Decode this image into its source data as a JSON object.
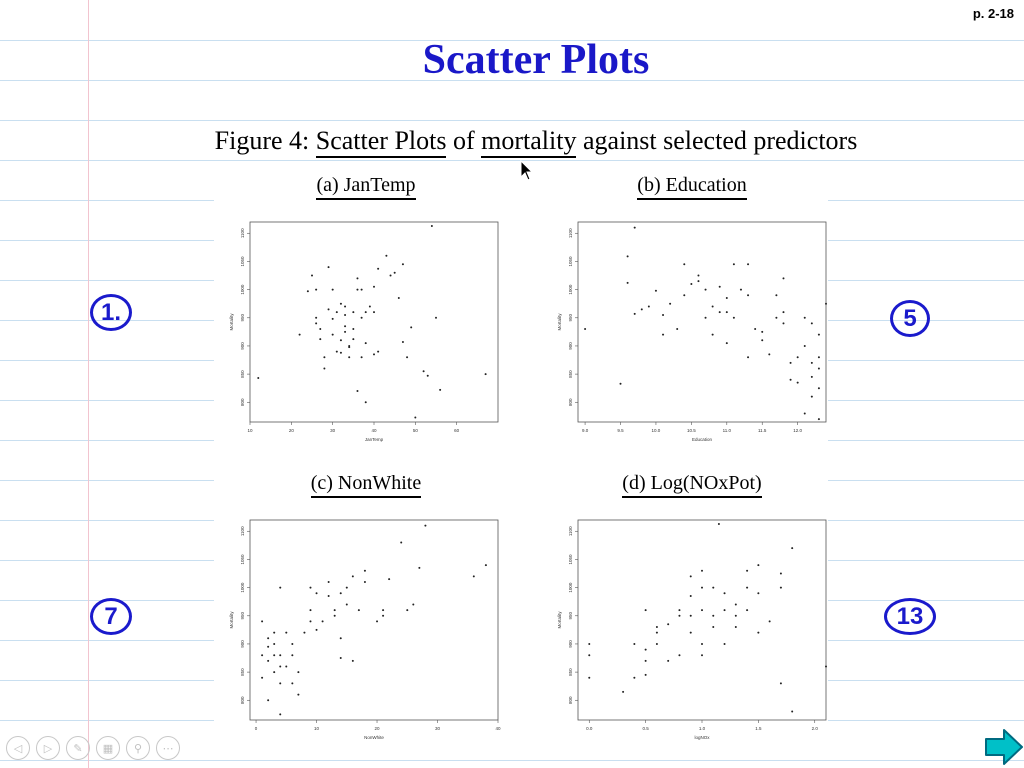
{
  "page": {
    "page_number": "p. 2-18",
    "title": "Scatter Plots",
    "caption": {
      "prefix": "Figure 4: ",
      "part1": "Scatter Plots",
      "mid": " of ",
      "part2": "mortality",
      "suffix": " against selected predictors"
    }
  },
  "annotations": [
    "1.",
    "5",
    "7",
    "13"
  ],
  "toolbar": {
    "icons": [
      "back-icon",
      "forward-icon",
      "pen-icon",
      "pages-icon",
      "zoom-icon",
      "more-icon"
    ],
    "next": "next-slide-arrow-icon"
  },
  "colors": {
    "title": "#1a18c8",
    "annotation": "#1a1acc",
    "arrow": "#00c0c8"
  },
  "chart_data": [
    {
      "type": "scatter",
      "title": "(a) JanTemp",
      "xlabel": "JanTemp",
      "ylabel": "Mortality",
      "xlim": [
        10,
        70
      ],
      "ylim": [
        765,
        1120
      ],
      "xticks": [
        10,
        20,
        30,
        40,
        50,
        60
      ],
      "yticks": [
        800,
        850,
        900,
        950,
        1000,
        1050,
        1100
      ],
      "points": [
        [
          12,
          843
        ],
        [
          22,
          920
        ],
        [
          24,
          997
        ],
        [
          25,
          1025
        ],
        [
          26,
          1000
        ],
        [
          26,
          940
        ],
        [
          26,
          950
        ],
        [
          27,
          930
        ],
        [
          27,
          912
        ],
        [
          28,
          860
        ],
        [
          28,
          880
        ],
        [
          29,
          965
        ],
        [
          29,
          1040
        ],
        [
          30,
          1000
        ],
        [
          30,
          920
        ],
        [
          30,
          948
        ],
        [
          31,
          890
        ],
        [
          31,
          960
        ],
        [
          32,
          975
        ],
        [
          32,
          910
        ],
        [
          32,
          888
        ],
        [
          33,
          970
        ],
        [
          33,
          925
        ],
        [
          33,
          935
        ],
        [
          33,
          955
        ],
        [
          34,
          898
        ],
        [
          34,
          900
        ],
        [
          34,
          880
        ],
        [
          35,
          960
        ],
        [
          35,
          912
        ],
        [
          35,
          930
        ],
        [
          36,
          1000
        ],
        [
          36,
          1020
        ],
        [
          36,
          820
        ],
        [
          37,
          880
        ],
        [
          37,
          950
        ],
        [
          37,
          1000
        ],
        [
          38,
          960
        ],
        [
          38,
          800
        ],
        [
          38,
          905
        ],
        [
          39,
          970
        ],
        [
          40,
          960
        ],
        [
          40,
          885
        ],
        [
          40,
          1005
        ],
        [
          41,
          1037
        ],
        [
          41,
          890
        ],
        [
          43,
          1060
        ],
        [
          44,
          1025
        ],
        [
          45,
          1030
        ],
        [
          46,
          985
        ],
        [
          47,
          1045
        ],
        [
          47,
          907
        ],
        [
          48,
          880
        ],
        [
          49,
          933
        ],
        [
          50,
          773
        ],
        [
          52,
          855
        ],
        [
          53,
          847
        ],
        [
          54,
          1113
        ],
        [
          55,
          950
        ],
        [
          56,
          822
        ],
        [
          67,
          850
        ]
      ]
    },
    {
      "type": "scatter",
      "title": "(b) Education",
      "xlabel": "Education",
      "ylabel": "Mortality",
      "xlim": [
        8.9,
        12.4
      ],
      "ylim": [
        765,
        1120
      ],
      "xticks": [
        9.0,
        9.5,
        10.0,
        10.5,
        11.0,
        11.5,
        12.0
      ],
      "yticks": [
        800,
        850,
        900,
        950,
        1000,
        1050,
        1100
      ],
      "points": [
        [
          9.0,
          930
        ],
        [
          9.5,
          833
        ],
        [
          9.6,
          1012
        ],
        [
          9.6,
          1059
        ],
        [
          9.7,
          957
        ],
        [
          9.7,
          1110
        ],
        [
          9.8,
          965
        ],
        [
          9.9,
          970
        ],
        [
          10.0,
          998
        ],
        [
          10.1,
          920
        ],
        [
          10.1,
          955
        ],
        [
          10.2,
          975
        ],
        [
          10.3,
          930
        ],
        [
          10.4,
          1045
        ],
        [
          10.4,
          990
        ],
        [
          10.5,
          1010
        ],
        [
          10.6,
          1025
        ],
        [
          10.6,
          1015
        ],
        [
          10.7,
          1000
        ],
        [
          10.7,
          950
        ],
        [
          10.8,
          970
        ],
        [
          10.8,
          920
        ],
        [
          10.9,
          960
        ],
        [
          10.9,
          1005
        ],
        [
          11.0,
          985
        ],
        [
          11.0,
          960
        ],
        [
          11.0,
          905
        ],
        [
          11.1,
          1045
        ],
        [
          11.1,
          950
        ],
        [
          11.2,
          1000
        ],
        [
          11.3,
          880
        ],
        [
          11.3,
          1045
        ],
        [
          11.3,
          990
        ],
        [
          11.4,
          930
        ],
        [
          11.5,
          910
        ],
        [
          11.5,
          925
        ],
        [
          11.6,
          885
        ],
        [
          11.7,
          950
        ],
        [
          11.7,
          990
        ],
        [
          11.8,
          940
        ],
        [
          11.8,
          960
        ],
        [
          11.8,
          1020
        ],
        [
          11.9,
          840
        ],
        [
          11.9,
          870
        ],
        [
          12.0,
          880
        ],
        [
          12.0,
          835
        ],
        [
          12.1,
          900
        ],
        [
          12.1,
          950
        ],
        [
          12.1,
          780
        ],
        [
          12.2,
          870
        ],
        [
          12.2,
          810
        ],
        [
          12.2,
          940
        ],
        [
          12.3,
          825
        ],
        [
          12.3,
          860
        ],
        [
          12.3,
          920
        ],
        [
          12.4,
          975
        ],
        [
          12.3,
          770
        ],
        [
          12.2,
          845
        ],
        [
          12.3,
          880
        ]
      ]
    },
    {
      "type": "scatter",
      "title": "(c) NonWhite",
      "xlabel": "NonWhite",
      "ylabel": "Mortality",
      "xlim": [
        -1,
        40
      ],
      "ylim": [
        765,
        1120
      ],
      "xticks": [
        0,
        10,
        20,
        30,
        40
      ],
      "yticks": [
        800,
        850,
        900,
        950,
        1000,
        1050,
        1100
      ],
      "points": [
        [
          1,
          840
        ],
        [
          1,
          880
        ],
        [
          1,
          940
        ],
        [
          2,
          800
        ],
        [
          2,
          910
        ],
        [
          2,
          895
        ],
        [
          2,
          870
        ],
        [
          3,
          850
        ],
        [
          3,
          880
        ],
        [
          3,
          900
        ],
        [
          3,
          920
        ],
        [
          4,
          830
        ],
        [
          4,
          860
        ],
        [
          4,
          880
        ],
        [
          4,
          1000
        ],
        [
          4,
          775
        ],
        [
          5,
          860
        ],
        [
          5,
          920
        ],
        [
          6,
          880
        ],
        [
          6,
          830
        ],
        [
          6,
          900
        ],
        [
          7,
          850
        ],
        [
          7,
          810
        ],
        [
          8,
          920
        ],
        [
          9,
          960
        ],
        [
          9,
          940
        ],
        [
          9,
          1000
        ],
        [
          10,
          990
        ],
        [
          10,
          925
        ],
        [
          11,
          940
        ],
        [
          12,
          1010
        ],
        [
          12,
          985
        ],
        [
          13,
          960
        ],
        [
          13,
          950
        ],
        [
          14,
          990
        ],
        [
          14,
          910
        ],
        [
          14,
          875
        ],
        [
          15,
          1000
        ],
        [
          15,
          970
        ],
        [
          16,
          1020
        ],
        [
          16,
          870
        ],
        [
          17,
          960
        ],
        [
          18,
          1030
        ],
        [
          18,
          1010
        ],
        [
          20,
          940
        ],
        [
          21,
          960
        ],
        [
          21,
          950
        ],
        [
          22,
          1015
        ],
        [
          24,
          1080
        ],
        [
          25,
          960
        ],
        [
          26,
          970
        ],
        [
          27,
          1035
        ],
        [
          28,
          1110
        ],
        [
          36,
          1020
        ],
        [
          38,
          1040
        ]
      ]
    },
    {
      "type": "scatter",
      "title": "(d) Log(NOxPot)",
      "xlabel": "logNOx",
      "ylabel": "Mortality",
      "xlim": [
        -0.1,
        2.1
      ],
      "ylim": [
        765,
        1120
      ],
      "xticks": [
        0.0,
        0.5,
        1.0,
        1.5,
        2.0
      ],
      "yticks": [
        800,
        850,
        900,
        950,
        1000,
        1050,
        1100
      ],
      "points": [
        [
          0.0,
          840
        ],
        [
          0.0,
          900
        ],
        [
          0.0,
          880
        ],
        [
          0.3,
          815
        ],
        [
          0.4,
          840
        ],
        [
          0.4,
          900
        ],
        [
          0.5,
          870
        ],
        [
          0.5,
          890
        ],
        [
          0.5,
          960
        ],
        [
          0.5,
          845
        ],
        [
          0.6,
          930
        ],
        [
          0.6,
          920
        ],
        [
          0.6,
          900
        ],
        [
          0.7,
          935
        ],
        [
          0.7,
          870
        ],
        [
          0.8,
          950
        ],
        [
          0.8,
          960
        ],
        [
          0.8,
          880
        ],
        [
          0.9,
          1020
        ],
        [
          0.9,
          985
        ],
        [
          0.9,
          950
        ],
        [
          0.9,
          920
        ],
        [
          1.0,
          1030
        ],
        [
          1.0,
          1000
        ],
        [
          1.0,
          960
        ],
        [
          1.0,
          900
        ],
        [
          1.0,
          880
        ],
        [
          1.1,
          1000
        ],
        [
          1.1,
          950
        ],
        [
          1.1,
          930
        ],
        [
          1.15,
          1113
        ],
        [
          1.2,
          990
        ],
        [
          1.2,
          960
        ],
        [
          1.2,
          900
        ],
        [
          1.3,
          970
        ],
        [
          1.3,
          950
        ],
        [
          1.3,
          930
        ],
        [
          1.4,
          1000
        ],
        [
          1.4,
          960
        ],
        [
          1.4,
          1030
        ],
        [
          1.5,
          1040
        ],
        [
          1.5,
          990
        ],
        [
          1.5,
          920
        ],
        [
          1.6,
          940
        ],
        [
          1.7,
          1000
        ],
        [
          1.7,
          1025
        ],
        [
          1.7,
          830
        ],
        [
          1.8,
          1070
        ],
        [
          1.8,
          780
        ],
        [
          2.1,
          860
        ]
      ]
    }
  ]
}
